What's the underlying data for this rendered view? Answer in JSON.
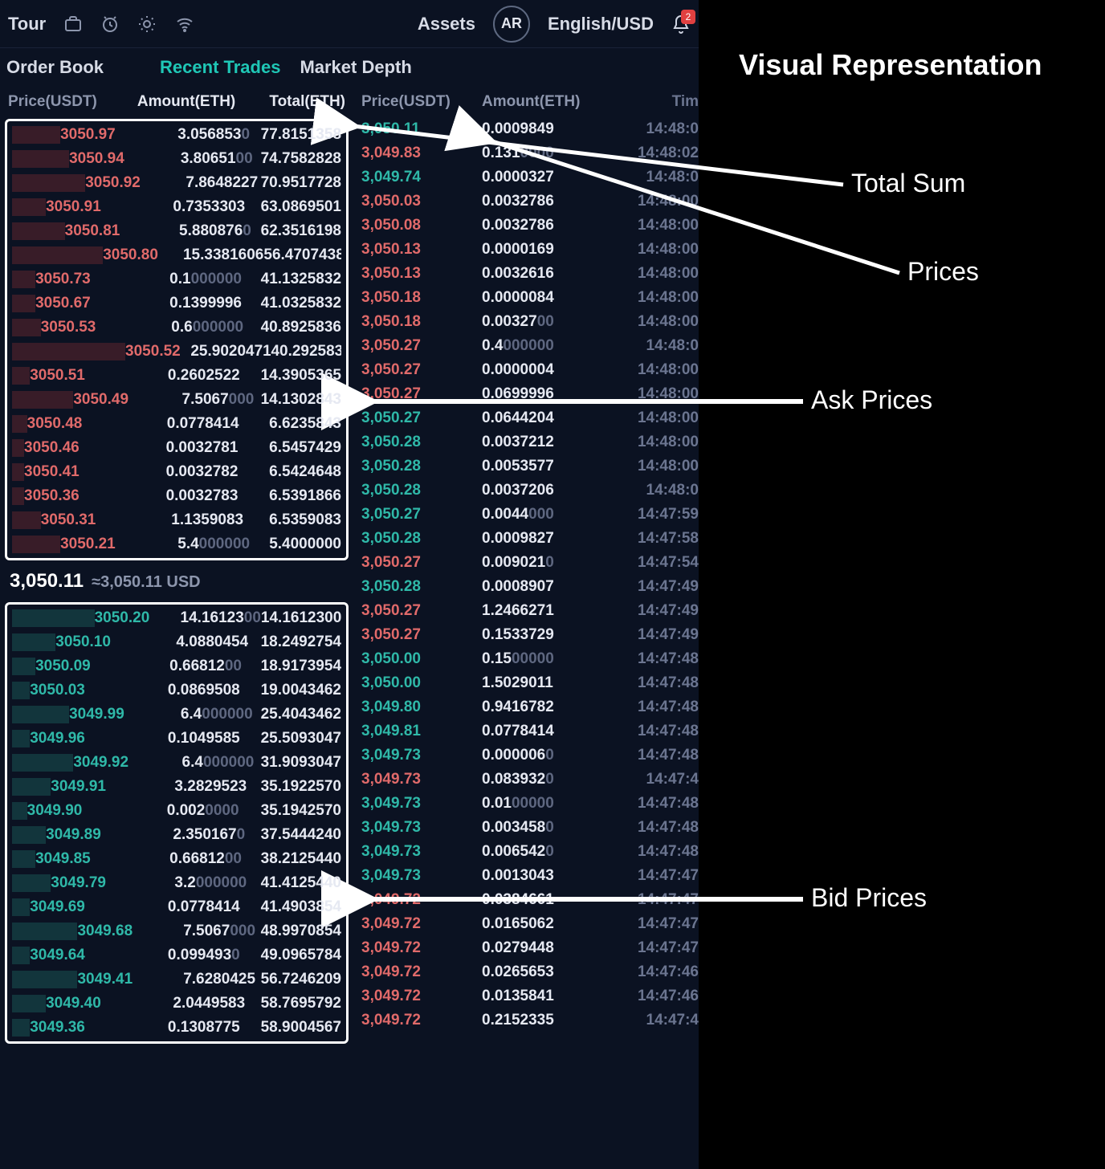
{
  "nav": {
    "tour": "Tour",
    "assets": "Assets",
    "ar": "AR",
    "lang": "English/USD",
    "bell_count": "2"
  },
  "tabs": {
    "order_book": "Order Book",
    "recent_trades": "Recent Trades",
    "market_depth": "Market Depth"
  },
  "orderbook": {
    "headers": {
      "price": "Price(USDT)",
      "amount": "Amount(ETH)",
      "total": "Total(ETH)"
    },
    "mid": {
      "price": "3,050.11",
      "approx": "≈3,050.11 USD"
    },
    "asks": [
      {
        "price": "3050.97",
        "amount": "3.0568530",
        "amount_grey": "0",
        "total": "77.8151358",
        "depth": 18
      },
      {
        "price": "3050.94",
        "amount": "3.8065100",
        "amount_grey": "00",
        "total": "74.7582828",
        "depth": 22
      },
      {
        "price": "3050.92",
        "amount": "7.8648227",
        "amount_grey": "",
        "total": "70.9517728",
        "depth": 30
      },
      {
        "price": "3050.91",
        "amount": "0.7353303",
        "amount_grey": "",
        "total": "63.0869501",
        "depth": 12
      },
      {
        "price": "3050.81",
        "amount": "5.8808760",
        "amount_grey": "0",
        "total": "62.3516198",
        "depth": 20
      },
      {
        "price": "3050.80",
        "amount": "15.3381606",
        "amount_grey": "",
        "total": "56.4707438",
        "depth": 40
      },
      {
        "price": "3050.73",
        "amount": "0.1000000",
        "amount_grey": "000000",
        "total": "41.1325832",
        "depth": 8
      },
      {
        "price": "3050.67",
        "amount": "0.1399996",
        "amount_grey": "",
        "total": "41.0325832",
        "depth": 8
      },
      {
        "price": "3050.53",
        "amount": "0.6000000",
        "amount_grey": "000000",
        "total": "40.8925836",
        "depth": 10
      },
      {
        "price": "3050.52",
        "amount": "25.9020471",
        "amount_grey": "",
        "total": "40.2925836",
        "depth": 55
      },
      {
        "price": "3050.51",
        "amount": "0.2602522",
        "amount_grey": "",
        "total": "14.3905365",
        "depth": 6
      },
      {
        "price": "3050.49",
        "amount": "7.5067000",
        "amount_grey": "000",
        "total": "14.1302843",
        "depth": 24
      },
      {
        "price": "3050.48",
        "amount": "0.0778414",
        "amount_grey": "",
        "total": "6.6235843",
        "depth": 5
      },
      {
        "price": "3050.46",
        "amount": "0.0032781",
        "amount_grey": "",
        "total": "6.5457429",
        "depth": 4
      },
      {
        "price": "3050.41",
        "amount": "0.0032782",
        "amount_grey": "",
        "total": "6.5424648",
        "depth": 4
      },
      {
        "price": "3050.36",
        "amount": "0.0032783",
        "amount_grey": "",
        "total": "6.5391866",
        "depth": 4
      },
      {
        "price": "3050.31",
        "amount": "1.1359083",
        "amount_grey": "",
        "total": "6.5359083",
        "depth": 10
      },
      {
        "price": "3050.21",
        "amount": "5.4000000",
        "amount_grey": "000000",
        "total": "5.4000000",
        "depth": 18
      }
    ],
    "bids": [
      {
        "price": "3050.20",
        "amount": "14.1612300",
        "amount_grey": "00",
        "total": "14.1612300",
        "depth": 35
      },
      {
        "price": "3050.10",
        "amount": "4.0880454",
        "amount_grey": "",
        "total": "18.2492754",
        "depth": 16
      },
      {
        "price": "3050.09",
        "amount": "0.6681200",
        "amount_grey": "00",
        "total": "18.9173954",
        "depth": 8
      },
      {
        "price": "3050.03",
        "amount": "0.0869508",
        "amount_grey": "",
        "total": "19.0043462",
        "depth": 6
      },
      {
        "price": "3049.99",
        "amount": "6.4000000",
        "amount_grey": "000000",
        "total": "25.4043462",
        "depth": 22
      },
      {
        "price": "3049.96",
        "amount": "0.1049585",
        "amount_grey": "",
        "total": "25.5093047",
        "depth": 6
      },
      {
        "price": "3049.92",
        "amount": "6.4000000",
        "amount_grey": "000000",
        "total": "31.9093047",
        "depth": 24
      },
      {
        "price": "3049.91",
        "amount": "3.2829523",
        "amount_grey": "",
        "total": "35.1922570",
        "depth": 14
      },
      {
        "price": "3049.90",
        "amount": "0.0020000",
        "amount_grey": "0000",
        "total": "35.1942570",
        "depth": 5
      },
      {
        "price": "3049.89",
        "amount": "2.3501670",
        "amount_grey": "0",
        "total": "37.5444240",
        "depth": 12
      },
      {
        "price": "3049.85",
        "amount": "0.6681200",
        "amount_grey": "00",
        "total": "38.2125440",
        "depth": 8
      },
      {
        "price": "3049.79",
        "amount": "3.2000000",
        "amount_grey": "000000",
        "total": "41.4125440",
        "depth": 14
      },
      {
        "price": "3049.69",
        "amount": "0.0778414",
        "amount_grey": "",
        "total": "41.4903854",
        "depth": 6
      },
      {
        "price": "3049.68",
        "amount": "7.5067000",
        "amount_grey": "000",
        "total": "48.9970854",
        "depth": 26
      },
      {
        "price": "3049.64",
        "amount": "0.0994930",
        "amount_grey": "0",
        "total": "49.0965784",
        "depth": 6
      },
      {
        "price": "3049.41",
        "amount": "7.6280425",
        "amount_grey": "",
        "total": "56.7246209",
        "depth": 26
      },
      {
        "price": "3049.40",
        "amount": "2.0449583",
        "amount_grey": "",
        "total": "58.7695792",
        "depth": 12
      },
      {
        "price": "3049.36",
        "amount": "0.1308775",
        "amount_grey": "",
        "total": "58.9004567",
        "depth": 6
      }
    ]
  },
  "recent_trades": {
    "headers": {
      "price": "Price(USDT)",
      "amount": "Amount(ETH)",
      "time": "Tim"
    },
    "rows": [
      {
        "side": "buy",
        "price": "3,050.11",
        "amount": "0.0009849",
        "time": "14:48:0"
      },
      {
        "side": "sell",
        "price": "3,049.83",
        "amount": "0.1310000",
        "amount_grey": "0000",
        "time": "14:48:02"
      },
      {
        "side": "buy",
        "price": "3,049.74",
        "amount": "0.0000327",
        "time": "14:48:0"
      },
      {
        "side": "sell",
        "price": "3,050.03",
        "amount": "0.0032786",
        "time": "14:48:00"
      },
      {
        "side": "sell",
        "price": "3,050.08",
        "amount": "0.0032786",
        "time": "14:48:00"
      },
      {
        "side": "sell",
        "price": "3,050.13",
        "amount": "0.0000169",
        "time": "14:48:00"
      },
      {
        "side": "sell",
        "price": "3,050.13",
        "amount": "0.0032616",
        "time": "14:48:00"
      },
      {
        "side": "sell",
        "price": "3,050.18",
        "amount": "0.0000084",
        "time": "14:48:00"
      },
      {
        "side": "sell",
        "price": "3,050.18",
        "amount": "0.0032700",
        "amount_grey": "00",
        "time": "14:48:00"
      },
      {
        "side": "sell",
        "price": "3,050.27",
        "amount": "0.4000000",
        "amount_grey": "000000",
        "time": "14:48:0"
      },
      {
        "side": "sell",
        "price": "3,050.27",
        "amount": "0.0000004",
        "time": "14:48:00"
      },
      {
        "side": "sell",
        "price": "3,050.27",
        "amount": "0.0699996",
        "time": "14:48:00"
      },
      {
        "side": "buy",
        "price": "3,050.27",
        "amount": "0.0644204",
        "time": "14:48:00"
      },
      {
        "side": "buy",
        "price": "3,050.28",
        "amount": "0.0037212",
        "time": "14:48:00"
      },
      {
        "side": "buy",
        "price": "3,050.28",
        "amount": "0.0053577",
        "time": "14:48:00"
      },
      {
        "side": "buy",
        "price": "3,050.28",
        "amount": "0.0037206",
        "time": "14:48:0"
      },
      {
        "side": "buy",
        "price": "3,050.27",
        "amount": "0.0044000",
        "amount_grey": "000",
        "time": "14:47:59"
      },
      {
        "side": "buy",
        "price": "3,050.28",
        "amount": "0.0009827",
        "time": "14:47:58"
      },
      {
        "side": "sell",
        "price": "3,050.27",
        "amount": "0.0090210",
        "amount_grey": "0",
        "time": "14:47:54"
      },
      {
        "side": "buy",
        "price": "3,050.28",
        "amount": "0.0008907",
        "time": "14:47:49"
      },
      {
        "side": "sell",
        "price": "3,050.27",
        "amount": "1.2466271",
        "time": "14:47:49"
      },
      {
        "side": "sell",
        "price": "3,050.27",
        "amount": "0.1533729",
        "time": "14:47:49"
      },
      {
        "side": "buy",
        "price": "3,050.00",
        "amount": "0.1500000",
        "amount_grey": "00000",
        "time": "14:47:48"
      },
      {
        "side": "buy",
        "price": "3,050.00",
        "amount": "1.5029011",
        "time": "14:47:48"
      },
      {
        "side": "buy",
        "price": "3,049.80",
        "amount": "0.9416782",
        "time": "14:47:48"
      },
      {
        "side": "buy",
        "price": "3,049.81",
        "amount": "0.0778414",
        "time": "14:47:48"
      },
      {
        "side": "buy",
        "price": "3,049.73",
        "amount": "0.0000060",
        "amount_grey": "0",
        "time": "14:47:48"
      },
      {
        "side": "sell",
        "price": "3,049.73",
        "amount": "0.0839320",
        "amount_grey": "0",
        "time": "14:47:4"
      },
      {
        "side": "buy",
        "price": "3,049.73",
        "amount": "0.0100000",
        "amount_grey": "00000",
        "time": "14:47:48"
      },
      {
        "side": "buy",
        "price": "3,049.73",
        "amount": "0.0034580",
        "amount_grey": "0",
        "time": "14:47:48"
      },
      {
        "side": "buy",
        "price": "3,049.73",
        "amount": "0.0065420",
        "amount_grey": "0",
        "time": "14:47:48"
      },
      {
        "side": "buy",
        "price": "3,049.73",
        "amount": "0.0013043",
        "time": "14:47:47"
      },
      {
        "side": "sell",
        "price": "3,049.72",
        "amount": "0.0384661",
        "time": "14:47:47"
      },
      {
        "side": "sell",
        "price": "3,049.72",
        "amount": "0.0165062",
        "time": "14:47:47"
      },
      {
        "side": "sell",
        "price": "3,049.72",
        "amount": "0.0279448",
        "time": "14:47:47"
      },
      {
        "side": "sell",
        "price": "3,049.72",
        "amount": "0.0265653",
        "time": "14:47:46"
      },
      {
        "side": "sell",
        "price": "3,049.72",
        "amount": "0.0135841",
        "time": "14:47:46"
      },
      {
        "side": "sell",
        "price": "3,049.72",
        "amount": "0.2152335",
        "time": "14:47:4"
      }
    ]
  },
  "annotations": {
    "title": "Visual Representation",
    "total_sum": "Total Sum",
    "prices": "Prices",
    "ask_prices": "Ask Prices",
    "bid_prices": "Bid Prices"
  },
  "colors": {
    "bg": "#0b1222",
    "ask": "#e06a6a",
    "bid": "#2fb8a8",
    "text": "#e6e9f2",
    "muted": "#8d96ad"
  }
}
